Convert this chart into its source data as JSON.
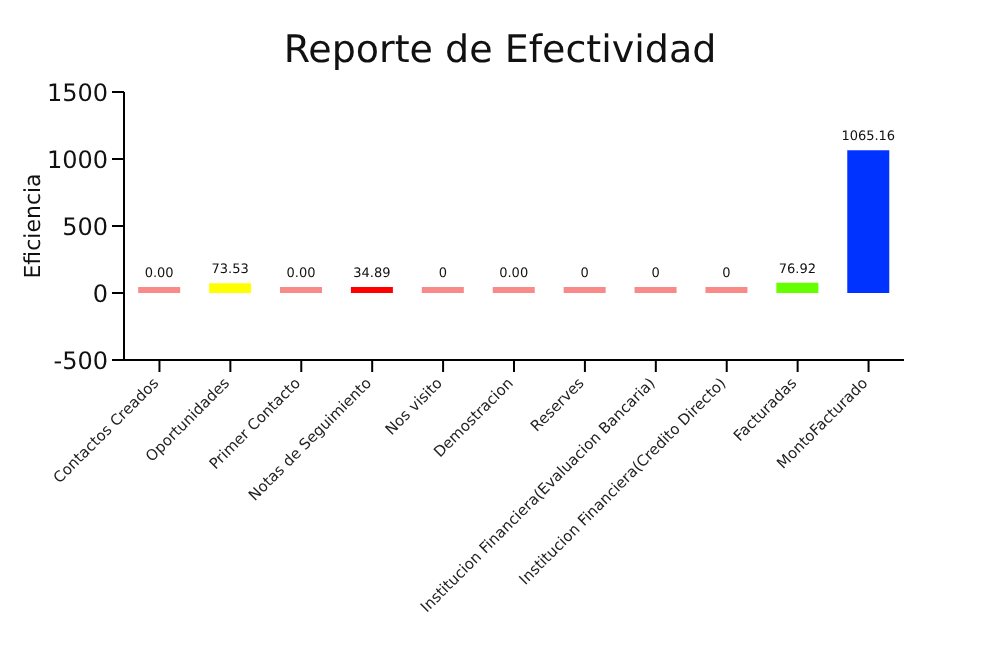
{
  "chart_data": {
    "type": "bar",
    "title": "Reporte de Efectividad",
    "ylabel": "Eficiencia",
    "categories": [
      "Contactos Creados",
      "Oportunidades",
      "Primer Contacto",
      "Notas de Seguimiento",
      "Nos visito",
      "Demostracion",
      "Reserves",
      "Institucion Financiera(Evaluacion Bancaria)",
      "Institucion Financiera(Credito Directo)",
      "Facturadas",
      "MontoFacturado"
    ],
    "values": [
      0,
      73.53,
      0,
      34.89,
      0,
      0,
      0,
      0,
      0,
      76.92,
      1065.16
    ],
    "colors": [
      "#f88a8a",
      "#ffff00",
      "#f88a8a",
      "#ff0000",
      "#f88a8a",
      "#f88a8a",
      "#f88a8a",
      "#f88a8a",
      "#f88a8a",
      "#66ff00",
      "#0033ff"
    ],
    "value_labels": [
      "0.00",
      "73.53",
      "0.00",
      "34.89",
      "0",
      "0.00",
      "0",
      "0",
      "0",
      "76.92",
      "1065.16"
    ],
    "ylim": [
      -500,
      1500
    ],
    "yticks": [
      -500,
      0,
      500,
      1000,
      1500
    ],
    "grid": false,
    "legend": false
  }
}
